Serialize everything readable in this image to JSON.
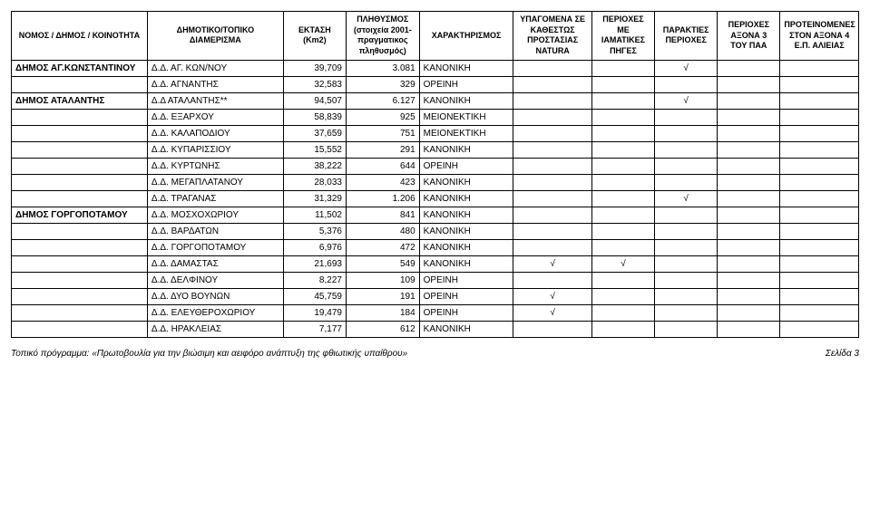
{
  "headers": {
    "nomos": "ΝΟΜΟΣ / ΔΗΜΟΣ / ΚΟΙΝΟΤΗΤΑ",
    "diam": "ΔΗΜΟΤΙΚΟ/ΤΟΠΙΚΟ ΔΙΑΜΕΡΙΣΜΑ",
    "ektasi": "ΕΚΤΑΣΗ (Km2)",
    "plith": "ΠΛΗΘΥΣΜΟΣ (στοιχεία 2001- πραγματικος πληθυσμός)",
    "char": "ΧΑΡΑΚΤΗΡΙΣΜΟΣ",
    "natura": "ΥΠΑΓΟΜΕΝΑ ΣΕ ΚΑΘΕΣΤΩΣ ΠΡΟΣΤΑΣΙΑΣ NATURA",
    "iam": "ΠΕΡΙΟΧΕΣ ΜΕ ΙΑΜΑΤΙΚΕΣ ΠΗΓΕΣ",
    "parakt": "ΠΑΡΑΚΤΙΕΣ ΠΕΡΙΟΧΕΣ",
    "axon3": "ΠΕΡΙΟΧΕΣ ΑΞΟΝΑ 3 ΤΟΥ ΠΑΑ",
    "alieias": "ΠΡΟΤΕΙΝΟΜΕΝΕΣ ΣΤΟΝ ΑΞΟΝΑ 4 Ε.Π. ΑΛΙΕΙΑΣ"
  },
  "rows": [
    {
      "nomos": "ΔΗΜΟΣ ΑΓ.ΚΩΝΣΤΑΝΤΙΝΟΥ",
      "diam": "Δ.Δ. ΑΓ. ΚΩΝ/ΝΟΥ",
      "ektasi": "39,709",
      "plith": "3.081",
      "char": "ΚΑΝΟΝΙΚΗ",
      "natura": "",
      "iam": "",
      "parakt": "√",
      "axon3": "",
      "alieias": ""
    },
    {
      "nomos": "",
      "diam": "Δ.Δ. ΑΓΝΑΝΤΗΣ",
      "ektasi": "32,583",
      "plith": "329",
      "char": "ΟΡΕΙΝΗ",
      "natura": "",
      "iam": "",
      "parakt": "",
      "axon3": "",
      "alieias": ""
    },
    {
      "nomos": "ΔΗΜΟΣ ΑΤΑΛΑΝΤΗΣ",
      "diam": "Δ.Δ ΑΤΑΛΑΝΤΗΣ**",
      "ektasi": "94,507",
      "plith": "6.127",
      "char": "ΚΑΝΟΝΙΚΗ",
      "natura": "",
      "iam": "",
      "parakt": "√",
      "axon3": "",
      "alieias": ""
    },
    {
      "nomos": "",
      "diam": "Δ.Δ. ΕΞΑΡΧΟΥ",
      "ektasi": "58,839",
      "plith": "925",
      "char": "ΜΕΙΟΝΕΚΤΙΚΗ",
      "natura": "",
      "iam": "",
      "parakt": "",
      "axon3": "",
      "alieias": ""
    },
    {
      "nomos": "",
      "diam": "Δ.Δ. ΚΑΛΑΠΟΔΙΟΥ",
      "ektasi": "37,659",
      "plith": "751",
      "char": "ΜΕΙΟΝΕΚΤΙΚΗ",
      "natura": "",
      "iam": "",
      "parakt": "",
      "axon3": "",
      "alieias": ""
    },
    {
      "nomos": "",
      "diam": "Δ.Δ. ΚΥΠΑΡΙΣΣΙΟΥ",
      "ektasi": "15,552",
      "plith": "291",
      "char": "ΚΑΝΟΝΙΚΗ",
      "natura": "",
      "iam": "",
      "parakt": "",
      "axon3": "",
      "alieias": ""
    },
    {
      "nomos": "",
      "diam": "Δ.Δ. ΚΥΡΤΩΝΗΣ",
      "ektasi": "38,222",
      "plith": "644",
      "char": "ΟΡΕΙΝΗ",
      "natura": "",
      "iam": "",
      "parakt": "",
      "axon3": "",
      "alieias": ""
    },
    {
      "nomos": "",
      "diam": "Δ.Δ. ΜΕΓΑΠΛΑΤΑΝΟΥ",
      "ektasi": "28,033",
      "plith": "423",
      "char": "ΚΑΝΟΝΙΚΗ",
      "natura": "",
      "iam": "",
      "parakt": "",
      "axon3": "",
      "alieias": ""
    },
    {
      "nomos": "",
      "diam": "Δ.Δ. ΤΡΑΓΑΝΑΣ",
      "ektasi": "31,329",
      "plith": "1.206",
      "char": "ΚΑΝΟΝΙΚΗ",
      "natura": "",
      "iam": "",
      "parakt": "√",
      "axon3": "",
      "alieias": ""
    },
    {
      "nomos": "ΔΗΜΟΣ ΓΟΡΓΟΠΟΤΑΜΟΥ",
      "diam": "Δ.Δ. ΜΟΣΧΟΧΩΡΙΟΥ",
      "ektasi": "11,502",
      "plith": "841",
      "char": "ΚΑΝΟΝΙΚΗ",
      "natura": "",
      "iam": "",
      "parakt": "",
      "axon3": "",
      "alieias": ""
    },
    {
      "nomos": "",
      "diam": "Δ.Δ. ΒΑΡΔΑΤΩΝ",
      "ektasi": "5,376",
      "plith": "480",
      "char": "ΚΑΝΟΝΙΚΗ",
      "natura": "",
      "iam": "",
      "parakt": "",
      "axon3": "",
      "alieias": ""
    },
    {
      "nomos": "",
      "diam": "Δ.Δ. ΓΟΡΓΟΠΟΤΑΜΟΥ",
      "ektasi": "6,976",
      "plith": "472",
      "char": "ΚΑΝΟΝΙΚΗ",
      "natura": "",
      "iam": "",
      "parakt": "",
      "axon3": "",
      "alieias": ""
    },
    {
      "nomos": "",
      "diam": "Δ.Δ. ΔΑΜΑΣΤΑΣ",
      "ektasi": "21,693",
      "plith": "549",
      "char": "ΚΑΝΟΝΙΚΗ",
      "natura": "√",
      "iam": "√",
      "parakt": "",
      "axon3": "",
      "alieias": ""
    },
    {
      "nomos": "",
      "diam": "Δ.Δ. ΔΕΛΦΙΝΟΥ",
      "ektasi": "8,227",
      "plith": "109",
      "char": "ΟΡΕΙΝΗ",
      "natura": "",
      "iam": "",
      "parakt": "",
      "axon3": "",
      "alieias": ""
    },
    {
      "nomos": "",
      "diam": "Δ.Δ. ΔΥΟ ΒΟΥΝΩΝ",
      "ektasi": "45,759",
      "plith": "191",
      "char": "ΟΡΕΙΝΗ",
      "natura": "√",
      "iam": "",
      "parakt": "",
      "axon3": "",
      "alieias": ""
    },
    {
      "nomos": "",
      "diam": "Δ.Δ. ΕΛΕΥΘΕΡΟΧΩΡΙΟΥ",
      "ektasi": "19,479",
      "plith": "184",
      "char": "ΟΡΕΙΝΗ",
      "natura": "√",
      "iam": "",
      "parakt": "",
      "axon3": "",
      "alieias": ""
    },
    {
      "nomos": "",
      "diam": "Δ.Δ. ΗΡΑΚΛΕΙΑΣ",
      "ektasi": "7,177",
      "plith": "612",
      "char": "ΚΑΝΟΝΙΚΗ",
      "natura": "",
      "iam": "",
      "parakt": "",
      "axon3": "",
      "alieias": ""
    }
  ],
  "footer": {
    "left": "Τοπικό πρόγραμμα: «Πρωτοβουλία για την βιώσιμη και αειφόρο ανάπτυξη της φθιωτικής υπαίθρου»",
    "right": "Σελίδα 3"
  }
}
